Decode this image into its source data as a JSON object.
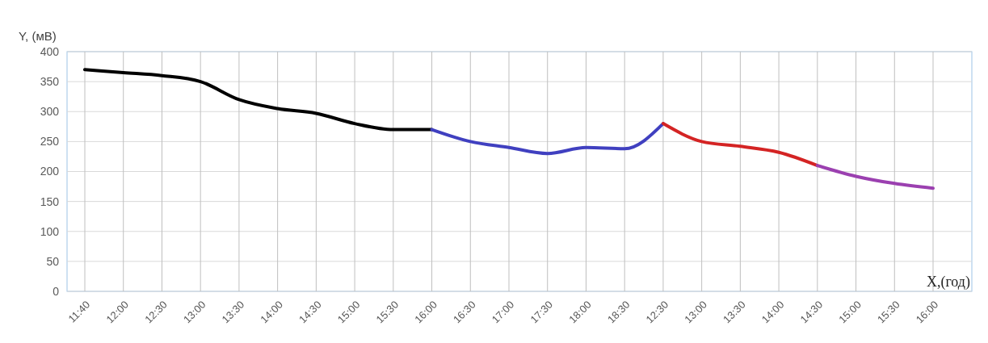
{
  "chart_data": {
    "type": "line",
    "ylabel": "Y, (мВ)",
    "xlabel": "X,(год)",
    "categories": [
      "11:40",
      "12:00",
      "12:30",
      "13:00",
      "13:30",
      "14:00",
      "14:30",
      "15:00",
      "15:30",
      "16:00",
      "16:30",
      "17:00",
      "17:30",
      "18:00",
      "18:30",
      "12:30",
      "13:00",
      "13:30",
      "14:00",
      "14:30",
      "15:00",
      "15:30",
      "16:00"
    ],
    "series": [
      {
        "color": "#000000",
        "values": [
          370,
          365,
          360,
          350,
          320,
          305,
          297,
          280,
          270,
          270,
          null,
          null,
          null,
          null,
          null,
          null,
          null,
          null,
          null,
          null,
          null,
          null,
          null
        ]
      },
      {
        "color": "#4040c0",
        "values": [
          null,
          null,
          null,
          null,
          null,
          null,
          null,
          null,
          null,
          270,
          250,
          240,
          230,
          240,
          238,
          280,
          null,
          null,
          null,
          null,
          null,
          null,
          null
        ]
      },
      {
        "color": "#d42424",
        "values": [
          null,
          null,
          null,
          null,
          null,
          null,
          null,
          null,
          null,
          null,
          null,
          null,
          null,
          null,
          null,
          280,
          250,
          242,
          232,
          210,
          null,
          null,
          null
        ]
      },
      {
        "color": "#9b40b0",
        "values": [
          null,
          null,
          null,
          null,
          null,
          null,
          null,
          null,
          null,
          null,
          null,
          null,
          null,
          null,
          null,
          null,
          null,
          null,
          null,
          210,
          192,
          180,
          172
        ]
      }
    ],
    "ylim": [
      0,
      400
    ],
    "yticks": [
      0,
      50,
      100,
      150,
      200,
      250,
      300,
      350,
      400
    ],
    "grid": true,
    "marker": "none",
    "line_style": "solid"
  }
}
